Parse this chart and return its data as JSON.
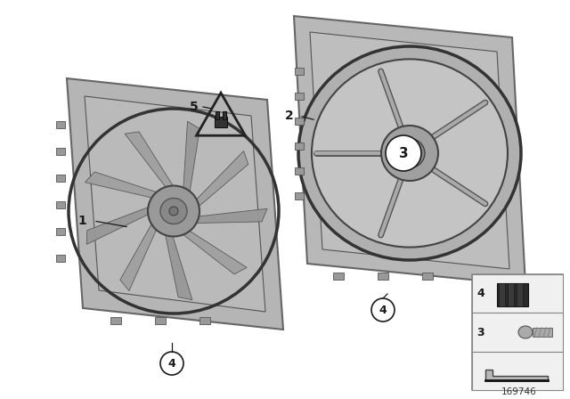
{
  "bg_color": "#ffffff",
  "diagram_number": "169746",
  "lc": "#1a1a1a",
  "fan_face_color": "#b8b8b8",
  "fan_edge_color": "#555555",
  "housing_color": "#c0c0c0",
  "housing_edge": "#555555",
  "blade_color": "#a8a8a8",
  "blade_edge": "#444444",
  "hub_color": "#909090",
  "dark_gray": "#444444",
  "mid_gray": "#888888",
  "light_gray": "#cccccc"
}
